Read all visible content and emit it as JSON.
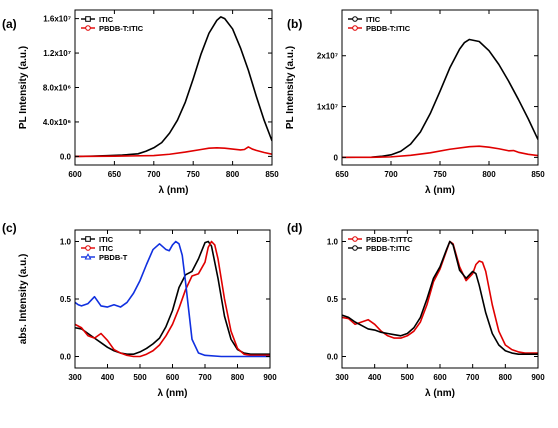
{
  "chart_data": [
    {
      "panel_label": "(a)",
      "type": "line",
      "xlabel": "λ (nm)",
      "ylabel": "PL Intensity (a.u.)",
      "xlim": [
        600,
        850
      ],
      "ylim": [
        -1000000,
        17000000
      ],
      "xticks": [
        600,
        650,
        700,
        750,
        800,
        850
      ],
      "xtick_labels": [
        "600",
        "650",
        "700",
        "750",
        "800",
        "850"
      ],
      "yticks": [
        0,
        4000000,
        8000000,
        12000000,
        16000000
      ],
      "ytick_labels": [
        "0.0",
        "4.0x10⁶",
        "8.0x10⁶",
        "1.2x10⁷",
        "1.6x10⁷"
      ],
      "legend_position": "top-left",
      "series": [
        {
          "name": "ITIC",
          "color": "#000000",
          "marker": "square",
          "x": [
            600,
            620,
            640,
            660,
            680,
            690,
            700,
            710,
            720,
            730,
            740,
            750,
            760,
            770,
            780,
            785,
            790,
            800,
            810,
            820,
            830,
            840,
            850
          ],
          "y": [
            0,
            30000,
            80000,
            150000,
            300000,
            600000,
            1000000,
            1600000,
            2700000,
            4200000,
            6300000,
            9000000,
            11900000,
            14300000,
            15800000,
            16200000,
            16000000,
            14800000,
            12600000,
            10000000,
            7000000,
            4200000,
            1800000
          ]
        },
        {
          "name": "PBDB-T:ITIC",
          "color": "#e00000",
          "marker": "circle",
          "x": [
            600,
            650,
            700,
            720,
            740,
            760,
            770,
            780,
            790,
            800,
            810,
            815,
            820,
            825,
            830,
            840,
            850
          ],
          "y": [
            0,
            20000,
            100000,
            250000,
            500000,
            800000,
            950000,
            1000000,
            950000,
            850000,
            750000,
            800000,
            1100000,
            850000,
            700000,
            450000,
            250000
          ]
        }
      ]
    },
    {
      "panel_label": "(b)",
      "type": "line",
      "xlabel": "λ (nm)",
      "ylabel": "PL Intensity (a.u.)",
      "xlim": [
        650,
        850
      ],
      "ylim": [
        -1500000,
        29000000
      ],
      "xticks": [
        650,
        700,
        750,
        800,
        850
      ],
      "xtick_labels": [
        "650",
        "700",
        "750",
        "800",
        "850"
      ],
      "yticks": [
        0,
        10000000,
        20000000
      ],
      "ytick_labels": [
        "0",
        "1x10⁷",
        "2x10⁷"
      ],
      "legend_position": "top-left",
      "series": [
        {
          "name": "ITIC",
          "color": "#000000",
          "marker": "circle",
          "x": [
            650,
            680,
            690,
            700,
            710,
            720,
            730,
            740,
            750,
            760,
            770,
            775,
            780,
            790,
            800,
            810,
            820,
            830,
            840,
            850
          ],
          "y": [
            0,
            50000,
            200000,
            500000,
            1200000,
            2600000,
            5000000,
            8600000,
            13000000,
            17600000,
            21300000,
            22600000,
            23200000,
            22800000,
            21000000,
            18300000,
            15000000,
            11400000,
            7600000,
            3500000
          ]
        },
        {
          "name": "PBDB-T:ITIC",
          "color": "#e00000",
          "marker": "circle",
          "x": [
            650,
            680,
            700,
            720,
            740,
            760,
            780,
            790,
            800,
            810,
            820,
            825,
            830,
            840,
            850
          ],
          "y": [
            0,
            20000,
            100000,
            400000,
            900000,
            1600000,
            2100000,
            2200000,
            2000000,
            1700000,
            1300000,
            1350000,
            1000000,
            600000,
            350000
          ]
        }
      ]
    },
    {
      "panel_label": "(c)",
      "type": "line",
      "xlabel": "λ (nm)",
      "ylabel": "abs. Intensity (a.u.)",
      "xlim": [
        300,
        900
      ],
      "ylim": [
        -0.1,
        1.1
      ],
      "xticks": [
        300,
        400,
        500,
        600,
        700,
        800,
        900
      ],
      "xtick_labels": [
        "300",
        "400",
        "500",
        "600",
        "700",
        "800",
        "900"
      ],
      "yticks": [
        0.0,
        0.5,
        1.0
      ],
      "ytick_labels": [
        "0.0",
        "0.5",
        "1.0"
      ],
      "legend_position": "top-left",
      "series": [
        {
          "name": "ITIC",
          "color": "#000000",
          "marker": "square",
          "x": [
            300,
            320,
            340,
            360,
            380,
            400,
            420,
            440,
            460,
            480,
            500,
            520,
            540,
            560,
            580,
            600,
            620,
            640,
            660,
            680,
            700,
            710,
            720,
            740,
            760,
            780,
            800,
            820,
            840,
            860,
            880,
            900
          ],
          "y": [
            0.25,
            0.24,
            0.2,
            0.16,
            0.12,
            0.08,
            0.05,
            0.03,
            0.02,
            0.02,
            0.04,
            0.07,
            0.11,
            0.16,
            0.26,
            0.4,
            0.6,
            0.71,
            0.74,
            0.85,
            0.99,
            1.0,
            0.96,
            0.68,
            0.35,
            0.15,
            0.06,
            0.03,
            0.02,
            0.02,
            0.02,
            0.02
          ]
        },
        {
          "name": "ITIC",
          "color": "#e00000",
          "marker": "circle",
          "x": [
            300,
            320,
            340,
            360,
            380,
            400,
            420,
            440,
            460,
            480,
            500,
            520,
            540,
            560,
            580,
            600,
            620,
            640,
            660,
            680,
            700,
            710,
            720,
            730,
            740,
            760,
            780,
            800,
            820,
            840,
            860,
            880,
            900
          ],
          "y": [
            0.28,
            0.25,
            0.18,
            0.16,
            0.2,
            0.14,
            0.06,
            0.03,
            0.01,
            0.0,
            0.0,
            0.02,
            0.05,
            0.1,
            0.18,
            0.28,
            0.42,
            0.58,
            0.7,
            0.72,
            0.82,
            0.95,
            1.0,
            0.97,
            0.85,
            0.5,
            0.22,
            0.07,
            0.02,
            0.01,
            0.01,
            0.01,
            0.01
          ]
        },
        {
          "name": "PBDB-T",
          "color": "#1030e0",
          "marker": "triangle",
          "x": [
            300,
            310,
            320,
            340,
            360,
            380,
            400,
            420,
            440,
            460,
            480,
            500,
            520,
            540,
            560,
            580,
            590,
            600,
            610,
            620,
            630,
            640,
            650,
            660,
            680,
            700,
            750,
            800,
            850,
            900
          ],
          "y": [
            0.47,
            0.45,
            0.44,
            0.46,
            0.52,
            0.44,
            0.43,
            0.45,
            0.43,
            0.47,
            0.55,
            0.66,
            0.8,
            0.93,
            0.98,
            0.93,
            0.92,
            0.97,
            1.0,
            0.98,
            0.88,
            0.65,
            0.4,
            0.15,
            0.03,
            0.01,
            0.0,
            0.0,
            0.0,
            0.0
          ]
        }
      ]
    },
    {
      "panel_label": "(d)",
      "type": "line",
      "xlabel": "λ (nm)",
      "ylabel": "",
      "xlim": [
        300,
        900
      ],
      "ylim": [
        -0.1,
        1.1
      ],
      "xticks": [
        300,
        400,
        500,
        600,
        700,
        800,
        900
      ],
      "xtick_labels": [
        "300",
        "400",
        "500",
        "600",
        "700",
        "800",
        "900"
      ],
      "yticks": [
        0.0,
        0.5,
        1.0
      ],
      "ytick_labels": [
        "0.0",
        "0.5",
        "1.0"
      ],
      "legend_position": "top-left",
      "series": [
        {
          "name": "PBDB-T:ITTC",
          "color": "#e00000",
          "marker": "circle",
          "x": [
            300,
            320,
            340,
            360,
            380,
            400,
            420,
            440,
            460,
            480,
            500,
            520,
            540,
            560,
            580,
            600,
            620,
            630,
            640,
            660,
            680,
            700,
            710,
            720,
            730,
            740,
            760,
            780,
            800,
            820,
            840,
            860,
            880,
            900
          ],
          "y": [
            0.34,
            0.33,
            0.28,
            0.3,
            0.32,
            0.28,
            0.22,
            0.18,
            0.16,
            0.16,
            0.18,
            0.22,
            0.3,
            0.45,
            0.65,
            0.76,
            0.92,
            1.0,
            0.98,
            0.78,
            0.66,
            0.72,
            0.8,
            0.83,
            0.82,
            0.74,
            0.45,
            0.22,
            0.1,
            0.06,
            0.04,
            0.03,
            0.03,
            0.03
          ]
        },
        {
          "name": "PBDB-T:ITIC",
          "color": "#000000",
          "marker": "circle",
          "x": [
            300,
            320,
            340,
            360,
            380,
            400,
            420,
            440,
            460,
            480,
            500,
            520,
            540,
            560,
            580,
            600,
            620,
            630,
            640,
            660,
            680,
            700,
            710,
            720,
            740,
            760,
            780,
            800,
            820,
            840,
            860,
            880,
            900
          ],
          "y": [
            0.36,
            0.34,
            0.3,
            0.27,
            0.24,
            0.23,
            0.21,
            0.2,
            0.19,
            0.18,
            0.2,
            0.25,
            0.34,
            0.5,
            0.68,
            0.78,
            0.93,
            1.0,
            0.97,
            0.75,
            0.68,
            0.74,
            0.72,
            0.62,
            0.38,
            0.2,
            0.1,
            0.05,
            0.03,
            0.02,
            0.02,
            0.02,
            0.02
          ]
        }
      ]
    }
  ]
}
